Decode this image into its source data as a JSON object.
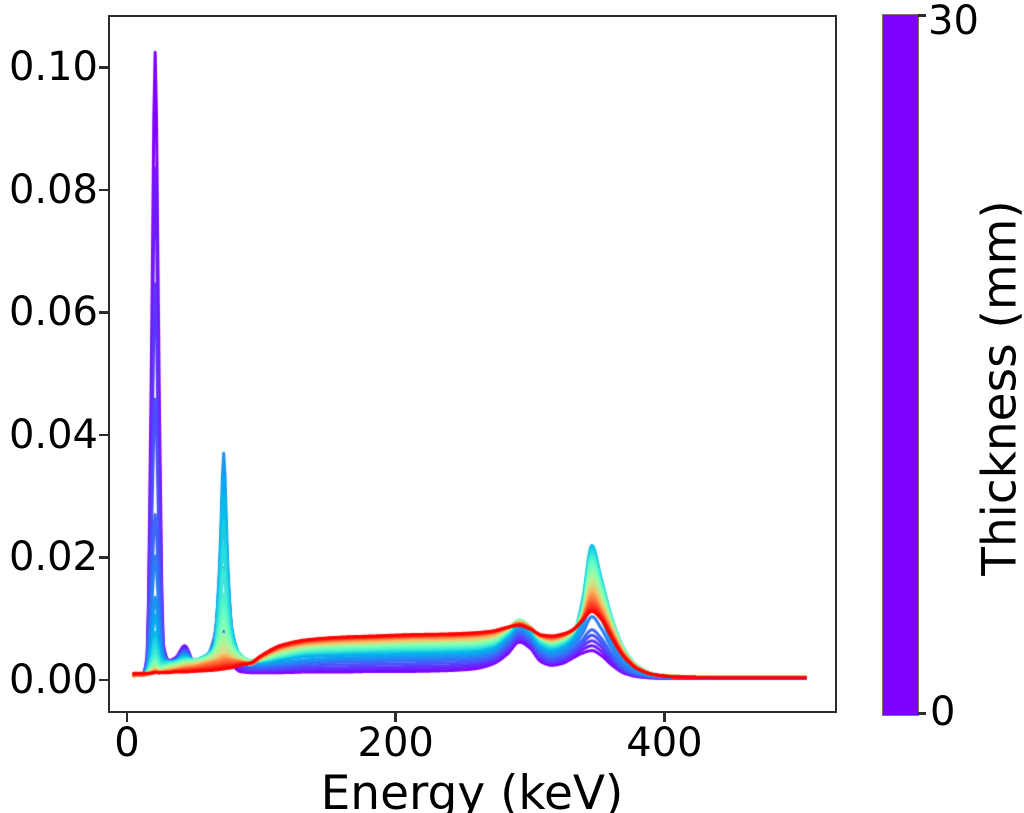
{
  "figure": {
    "background": "#ffffff"
  },
  "chart_data": {
    "type": "line",
    "title": "",
    "xlabel": "Energy (keV)",
    "ylabel": "",
    "grid": false,
    "legend": "colorbar",
    "xlim": [
      -14.1,
      528.4
    ],
    "ylim": [
      -0.00539,
      0.10857
    ],
    "x_ticks": {
      "values": [
        0,
        200,
        400
      ],
      "labels": [
        "0",
        "200",
        "400"
      ]
    },
    "y_ticks": {
      "values": [
        0,
        0.02,
        0.04,
        0.06,
        0.08,
        0.1
      ],
      "labels": [
        "0.00",
        "0.02",
        "0.04",
        "0.06",
        "0.08",
        "0.10"
      ]
    },
    "colormap": "rainbow",
    "colormap_endpoints": {
      "low": "#8000FF",
      "high": "#FF0000"
    },
    "series_parameter": "thickness_mm",
    "n_curves": 31,
    "thickness_values_mm": {
      "min": 0,
      "max": 30,
      "step": 1
    },
    "notable_features": {
      "peak1": {
        "energy_keV": 21,
        "max_value": 0.1025,
        "dominant_thickness_mm": 0
      },
      "peak2": {
        "energy_keV": 72,
        "max_value": 0.037,
        "dominant_thickness_mm": 6
      },
      "small_bump": {
        "energy_keV": 43,
        "max_value": 0.0056
      },
      "scatter_bump": {
        "energy_keV": 292,
        "max_value": 0.0098
      },
      "main_peak": {
        "energy_keV": 346,
        "max_value": 0.022,
        "dominant_thickness_mm": 8
      },
      "red_plateau": {
        "energy_range_keV": [
          150,
          280
        ],
        "value": 0.0075
      },
      "red_tail_end_keV": 505
    },
    "energy_grid_keV": [
      5,
      12,
      15,
      18,
      21,
      24,
      27,
      31,
      36,
      43,
      50,
      58,
      65,
      69,
      72,
      75,
      78,
      84,
      92,
      100,
      115,
      135,
      160,
      185,
      210,
      235,
      258,
      272,
      283,
      292,
      300,
      308,
      316,
      324,
      332,
      339,
      346,
      353,
      361,
      370,
      381,
      394,
      410,
      435,
      470,
      505
    ],
    "anchor_thicknesses_mm": [
      0,
      2,
      4,
      6,
      7,
      8,
      12,
      16,
      21,
      25,
      30
    ],
    "anchor_spectra_value_x1e4": [
      [
        7,
        10,
        40,
        480,
        1025,
        480,
        60,
        32,
        36,
        56,
        28,
        24,
        35,
        50,
        68,
        50,
        28,
        14,
        12,
        12,
        12,
        13,
        13,
        14,
        14,
        15,
        18,
        26,
        42,
        62,
        52,
        30,
        24,
        27,
        36,
        44,
        48,
        40,
        24,
        11,
        5,
        3,
        3,
        3,
        3,
        3
      ],
      [
        7,
        10,
        34,
        300,
        647,
        300,
        52,
        31,
        34,
        52,
        29,
        28,
        45,
        65,
        80,
        65,
        38,
        22,
        16,
        16,
        17,
        19,
        20,
        21,
        22,
        23,
        26,
        32,
        50,
        69,
        59,
        37,
        29,
        33,
        43,
        55,
        64,
        54,
        33,
        15,
        7,
        4,
        3,
        3,
        3,
        3
      ],
      [
        7,
        9,
        28,
        140,
        270,
        140,
        45,
        30,
        32,
        46,
        30,
        34,
        70,
        160,
        285,
        160,
        80,
        36,
        22,
        21,
        23,
        27,
        29,
        30,
        31,
        32,
        34,
        40,
        58,
        77,
        66,
        44,
        36,
        40,
        51,
        66,
        82,
        68,
        42,
        20,
        9,
        5,
        4,
        4,
        4,
        4
      ],
      [
        7,
        9,
        20,
        70,
        135,
        70,
        36,
        30,
        31,
        42,
        33,
        38,
        60,
        190,
        370,
        190,
        85,
        40,
        26,
        26,
        29,
        33,
        36,
        37,
        38,
        39,
        41,
        47,
        66,
        85,
        74,
        52,
        44,
        49,
        62,
        86,
        125,
        100,
        60,
        30,
        13,
        6,
        5,
        4,
        4,
        4
      ],
      [
        7,
        9,
        18,
        56,
        106,
        56,
        34,
        30,
        31,
        40,
        33,
        39,
        58,
        175,
        332,
        175,
        83,
        41,
        28,
        28,
        33,
        38,
        40,
        41,
        42,
        43,
        45,
        51,
        69,
        88,
        77,
        55,
        48,
        53,
        67,
        95,
        138,
        115,
        70,
        40,
        17,
        8,
        6,
        5,
        5,
        5
      ],
      [
        7,
        9,
        16,
        42,
        78,
        42,
        32,
        30,
        31,
        38,
        33,
        39,
        55,
        160,
        300,
        160,
        80,
        42,
        30,
        30,
        36,
        42,
        44,
        45,
        46,
        47,
        49,
        55,
        72,
        91,
        80,
        58,
        51,
        57,
        73,
        130,
        220,
        165,
        100,
        50,
        21,
        9,
        6,
        5,
        5,
        5
      ],
      [
        7,
        9,
        13,
        25,
        38,
        25,
        24,
        26,
        28,
        32,
        33,
        37,
        50,
        90,
        140,
        90,
        60,
        42,
        32,
        33,
        40,
        48,
        50,
        52,
        53,
        54,
        56,
        61,
        79,
        98,
        87,
        66,
        58,
        63,
        78,
        115,
        200,
        155,
        98,
        49,
        21,
        9,
        6,
        5,
        5,
        5
      ],
      [
        7,
        8,
        12,
        17,
        24,
        18,
        19,
        22,
        24,
        28,
        30,
        34,
        45,
        60,
        75,
        62,
        50,
        38,
        30,
        34,
        45,
        53,
        57,
        58,
        60,
        61,
        62,
        67,
        82,
        97,
        87,
        68,
        62,
        67,
        80,
        108,
        178,
        140,
        91,
        47,
        20,
        9,
        6,
        5,
        5,
        5
      ],
      [
        7,
        8,
        10,
        13,
        17,
        14,
        15,
        17,
        19,
        23,
        25,
        29,
        33,
        38,
        43,
        40,
        36,
        31,
        26,
        36,
        50,
        58,
        61,
        63,
        65,
        66,
        68,
        72,
        84,
        94,
        86,
        70,
        65,
        70,
        81,
        103,
        152,
        124,
        83,
        44,
        19,
        8,
        6,
        5,
        5,
        5
      ],
      [
        7,
        8,
        9,
        11,
        14,
        12,
        13,
        14,
        16,
        19,
        21,
        25,
        29,
        31,
        33,
        33,
        32,
        30,
        27,
        38,
        53,
        62,
        66,
        68,
        70,
        71,
        73,
        77,
        85,
        92,
        85,
        72,
        68,
        72,
        82,
        100,
        135,
        112,
        76,
        41,
        18,
        8,
        5,
        4,
        4,
        4
      ],
      [
        11,
        11,
        11,
        11,
        12,
        12,
        12,
        12,
        13,
        13,
        14,
        15,
        16,
        17,
        18,
        19,
        20,
        24,
        28,
        40,
        57,
        66,
        70,
        72,
        74,
        75,
        77,
        80,
        86,
        89,
        83,
        74,
        72,
        75,
        82,
        97,
        112,
        99,
        68,
        37,
        17,
        8,
        5,
        4,
        4,
        4
      ]
    ],
    "colorbar": {
      "label": "Thickness (mm)",
      "min": 0,
      "max": 30,
      "tick_bottom": "0",
      "tick_top": "30"
    }
  }
}
